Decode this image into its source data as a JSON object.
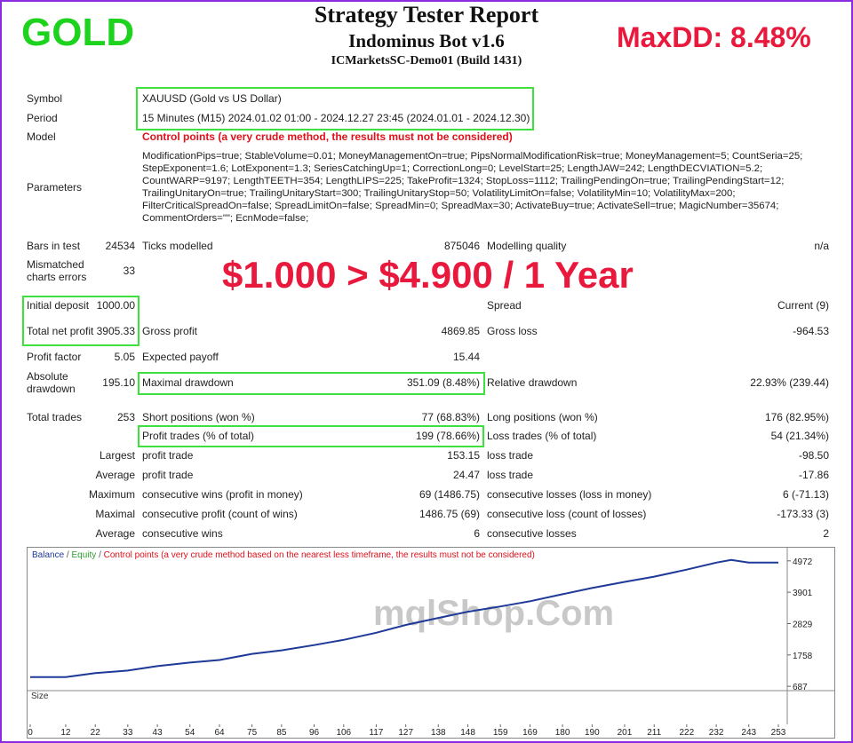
{
  "overlay": {
    "badge": "GOLD",
    "maxdd": "MaxDD: 8.48%",
    "headline": "$1.000 > $4.900 / 1 Year",
    "watermark": "mqlShop.Com"
  },
  "header": {
    "title": "Strategy Tester Report",
    "subtitle": "Indominus Bot v1.6",
    "server": "ICMarketsSC-Demo01 (Build 1431)"
  },
  "settings": [
    {
      "label": "Symbol",
      "value": "XAUUSD (Gold vs US Dollar)"
    },
    {
      "label": "Period",
      "value": "15 Minutes (M15) 2024.01.02 01:00 - 2024.12.27 23:45 (2024.01.01 - 2024.12.30)"
    },
    {
      "label": "Model",
      "value": "Control points (a very crude method, the results must not be considered)"
    },
    {
      "label": "Parameters",
      "value": "ModificationPips=true; StableVolume=0.01; MoneyManagementOn=true; PipsNormalModificationRisk=true; MoneyManagement=5; CountSeria=25; StepExponent=1.6; LotExponent=1.3; SeriesCatchingUp=1; CorrectionLong=0; LevelStart=25; LengthJAW=242; LengthDECVIATION=5.2; CountWARP=9197; LengthTEETH=354; LengthLIPS=225; TakeProfit=1324; StopLoss=1112; TrailingPendingOn=true; TrailingPendingStart=12; TrailingUnitaryOn=true; TrailingUnitaryStart=300; TrailingUnitaryStop=50; VolatilityLimitOn=false; VolatilityMin=10; VolatilityMax=200; FilterCriticalSpreadOn=false; SpreadLimitOn=false; SpreadMin=0; SpreadMax=30; ActivateBuy=true; ActivateSell=true; MagicNumber=35674; CommentOrders=\"\"; EcnMode=false;"
    }
  ],
  "stats": [
    [
      "Bars in test",
      "24534",
      "Ticks modelled",
      "875046",
      "Modelling quality",
      "n/a"
    ],
    [
      "Mismatched charts errors",
      "33",
      null,
      null,
      null,
      null
    ],
    [
      "Initial deposit",
      "1000.00",
      null,
      null,
      "Spread",
      "Current (9)"
    ],
    [
      "Total net profit",
      "3905.33",
      "Gross profit",
      "4869.85",
      "Gross loss",
      "-964.53"
    ],
    [
      "Profit factor",
      "5.05",
      "Expected payoff",
      "15.44",
      null,
      null
    ],
    [
      "Absolute drawdown",
      "195.10",
      "Maximal drawdown",
      "351.09 (8.48%)",
      "Relative drawdown",
      "22.93% (239.44)"
    ],
    [
      "Total trades",
      "253",
      "Short positions (won %)",
      "77 (68.83%)",
      "Long positions (won %)",
      "176 (82.95%)"
    ],
    [
      null,
      null,
      "Profit trades (% of total)",
      "199 (78.66%)",
      "Loss trades (% of total)",
      "54 (21.34%)"
    ],
    [
      "Largest",
      null,
      "profit trade",
      "153.15",
      "loss trade",
      "-98.50"
    ],
    [
      "Average",
      null,
      "profit trade",
      "24.47",
      "loss trade",
      "-17.86"
    ],
    [
      "Maximum",
      null,
      "consecutive wins (profit in money)",
      "69 (1486.75)",
      "consecutive losses (loss in money)",
      "6 (-71.13)"
    ],
    [
      "Maximal",
      null,
      "consecutive profit (count of wins)",
      "1486.75 (69)",
      "consecutive loss (count of losses)",
      "-173.33 (3)"
    ],
    [
      "Average",
      null,
      "consecutive wins",
      "6",
      "consecutive losses",
      "2"
    ]
  ],
  "chart_data": {
    "type": "line",
    "legend_separator": "/",
    "legend_note": "Control points (a very crude method based on the nearest less timeframe, the results must not be considered)",
    "size_label": "Size",
    "x": [
      0,
      12,
      22,
      33,
      43,
      54,
      64,
      75,
      85,
      96,
      106,
      117,
      127,
      138,
      148,
      159,
      169,
      180,
      190,
      201,
      211,
      222,
      232,
      237,
      243,
      253
    ],
    "series": [
      {
        "name": "Equity",
        "color": "#2e9e2e",
        "values": [
          1000,
          1000,
          1136,
          1226,
          1376,
          1496,
          1585,
          1795,
          1915,
          2095,
          2275,
          2515,
          2784,
          3024,
          3234,
          3413,
          3593,
          3833,
          4043,
          4253,
          4433,
          4673,
          4912,
          5002,
          4912,
          4912
        ]
      },
      {
        "name": "Balance",
        "color": "#1f3a9a",
        "values": [
          1000,
          1000,
          1136,
          1226,
          1376,
          1496,
          1585,
          1795,
          1915,
          2095,
          2275,
          2515,
          2784,
          3024,
          3234,
          3413,
          3593,
          3833,
          4043,
          4253,
          4433,
          4673,
          4912,
          5002,
          4912,
          4912
        ]
      }
    ],
    "xlim": [
      0,
      256
    ],
    "xticks": [
      0,
      12,
      22,
      33,
      43,
      54,
      64,
      75,
      85,
      96,
      106,
      117,
      127,
      138,
      148,
      159,
      169,
      180,
      190,
      201,
      211,
      222,
      232,
      243,
      253
    ],
    "ylim": [
      600,
      5330
    ],
    "yticks": [
      687,
      1758,
      2829,
      3901,
      4972
    ]
  }
}
